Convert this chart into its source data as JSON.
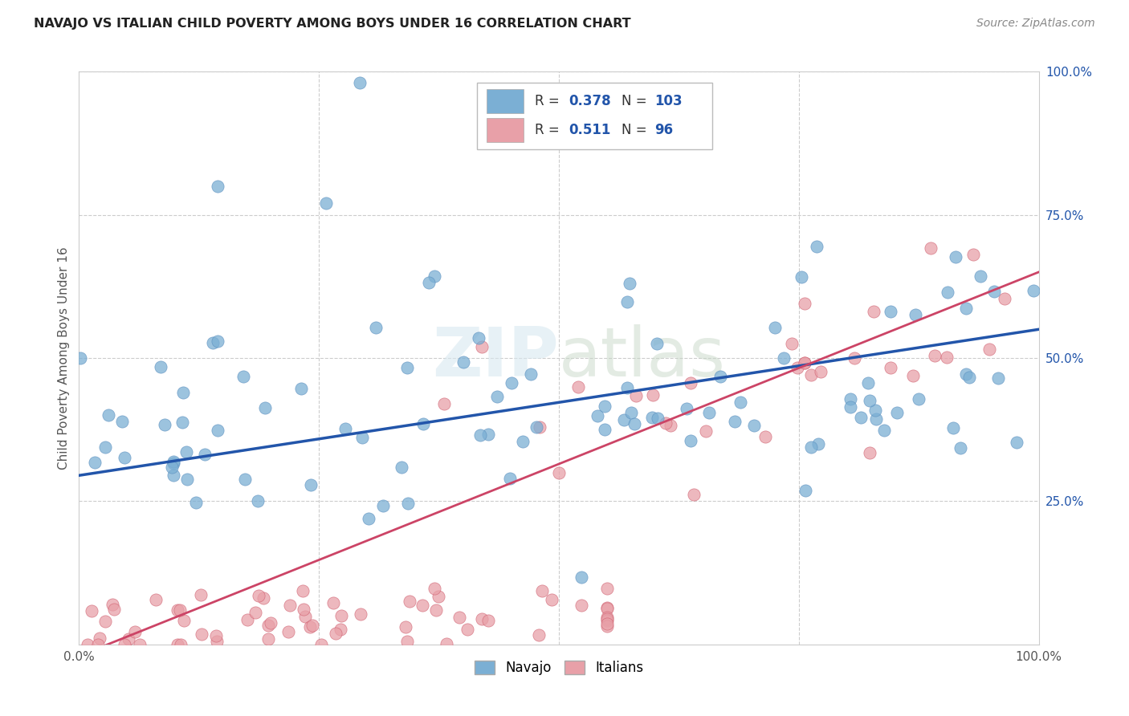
{
  "title": "NAVAJO VS ITALIAN CHILD POVERTY AMONG BOYS UNDER 16 CORRELATION CHART",
  "source": "Source: ZipAtlas.com",
  "ylabel": "Child Poverty Among Boys Under 16",
  "navajo_color": "#7bafd4",
  "navajo_color_edge": "#5a8fbf",
  "italian_color": "#e8a0a8",
  "italian_color_edge": "#d06070",
  "navajo_line_color": "#2255aa",
  "italian_line_color": "#cc4466",
  "R_navajo": "0.378",
  "N_navajo": "103",
  "R_italian": "0.511",
  "N_italian": "96",
  "stat_color": "#2255aa",
  "watermark": "ZIPatlas",
  "background_color": "#ffffff",
  "grid_color": "#cccccc",
  "right_tick_color": "#2255aa"
}
